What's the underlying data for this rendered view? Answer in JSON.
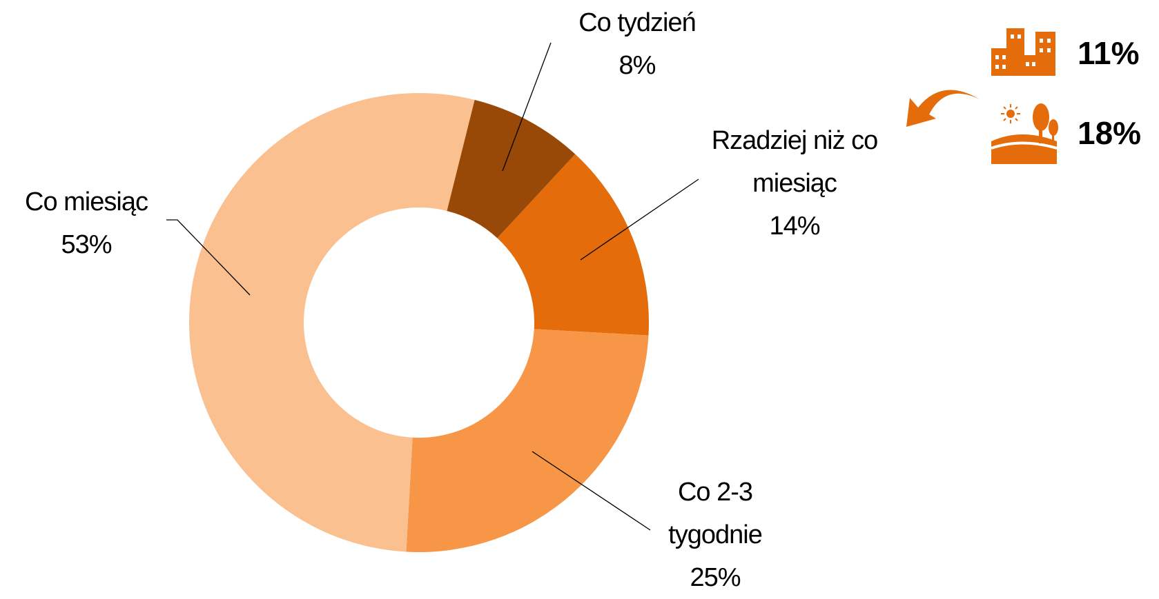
{
  "chart_data": {
    "type": "donut",
    "categories": [
      "Co tydzień",
      "Rzadziej niż co miesiąc",
      "Co 2-3 tygodnie",
      "Co miesiąc"
    ],
    "values": [
      8,
      14,
      25,
      53
    ],
    "value_labels": [
      "8%",
      "14%",
      "25%",
      "53%"
    ],
    "colors": [
      "#984807",
      "#E46C0A",
      "#F79646",
      "#FAC090"
    ],
    "annotations": [
      "11%",
      "18%"
    ]
  }
}
